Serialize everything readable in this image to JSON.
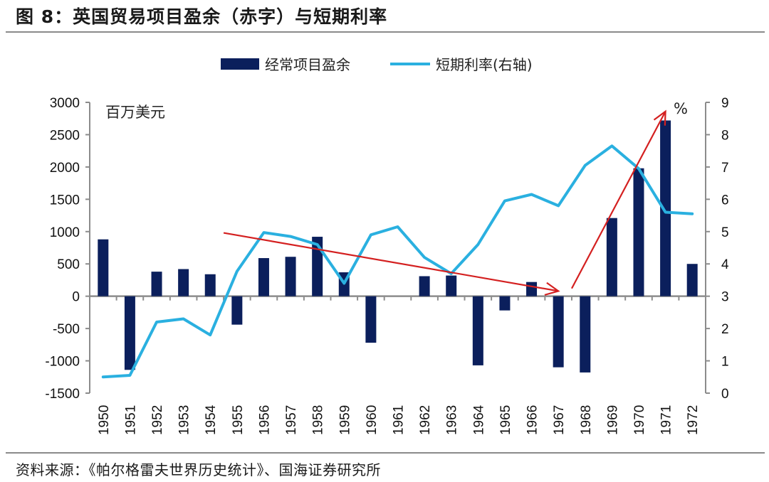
{
  "header": {
    "title": "图 8：英国贸易项目盈余（赤字）与短期利率"
  },
  "footer": {
    "source": "资料来源：《帕尔格雷夫世界历史统计》、国海证券研究所"
  },
  "chart_data": {
    "type": "bar",
    "title": "图 8：英国贸易项目盈余（赤字）与短期利率",
    "categories": [
      "1950",
      "1951",
      "1952",
      "1953",
      "1954",
      "1955",
      "1956",
      "1957",
      "1958",
      "1959",
      "1960",
      "1961",
      "1962",
      "1963",
      "1964",
      "1965",
      "1966",
      "1967",
      "1968",
      "1969",
      "1970",
      "1971",
      "1972"
    ],
    "series": [
      {
        "name": "经常项目盈余",
        "type": "bar",
        "axis": "left",
        "color": "#0b1f5c",
        "values": [
          880,
          -1140,
          380,
          420,
          340,
          -440,
          590,
          610,
          920,
          370,
          -720,
          0,
          310,
          320,
          -1070,
          -220,
          220,
          -1100,
          -1180,
          1210,
          1980,
          2720,
          500
        ]
      },
      {
        "name": "短期利率(右轴)",
        "type": "line",
        "axis": "right",
        "color": "#2ab0e0",
        "values": [
          0.5,
          0.55,
          2.2,
          2.3,
          1.8,
          3.77,
          4.97,
          4.85,
          4.6,
          3.4,
          4.9,
          5.15,
          4.2,
          3.7,
          4.6,
          5.95,
          6.15,
          5.8,
          7.05,
          7.65,
          6.95,
          5.6,
          5.55
        ]
      }
    ],
    "left_axis": {
      "unit_label": "百万美元",
      "range": [
        -1500,
        3000
      ],
      "ticks": [
        "3000",
        "2500",
        "2000",
        "1500",
        "1000",
        "500",
        "0",
        "-500",
        "-1000",
        "-1500"
      ],
      "tick_values": [
        3000,
        2500,
        2000,
        1500,
        1000,
        500,
        0,
        -500,
        -1000,
        -1500
      ]
    },
    "right_axis": {
      "unit_label": "%",
      "range": [
        0,
        9
      ],
      "ticks": [
        "9",
        "8",
        "7",
        "6",
        "5",
        "4",
        "3",
        "2",
        "1",
        "0"
      ],
      "tick_values": [
        9,
        8,
        7,
        6,
        5,
        4,
        3,
        2,
        1,
        0
      ]
    },
    "legend": {
      "placement": "top-center",
      "items": [
        {
          "label": "经常项目盈余",
          "marker": "bar"
        },
        {
          "label": "短期利率(右轴)",
          "marker": "line"
        }
      ]
    },
    "annotations": [
      {
        "type": "arrow",
        "color": "#d42020",
        "from": {
          "x": "1954.5",
          "y_left": 980
        },
        "to": {
          "x": "1967",
          "y_left": 80
        },
        "description": "downward trend arrow"
      },
      {
        "type": "arrow",
        "color": "#d42020",
        "from": {
          "x": "1967.5",
          "y_left": 120
        },
        "to": {
          "x": "1971",
          "y_left": 2860
        },
        "description": "upward trend arrow"
      }
    ],
    "grid": false
  }
}
